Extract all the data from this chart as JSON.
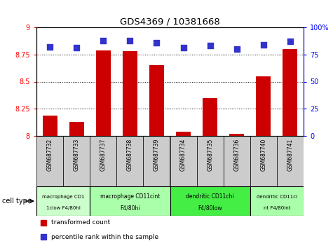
{
  "title": "GDS4369 / 10381668",
  "samples": [
    "GSM687732",
    "GSM687733",
    "GSM687737",
    "GSM687738",
    "GSM687739",
    "GSM687734",
    "GSM687735",
    "GSM687736",
    "GSM687740",
    "GSM687741"
  ],
  "transformed_count": [
    8.19,
    8.13,
    8.79,
    8.78,
    8.65,
    8.04,
    8.35,
    8.02,
    8.55,
    8.8
  ],
  "percentile_rank": [
    82,
    81,
    88,
    88,
    86,
    81,
    83,
    80,
    84,
    87
  ],
  "ylim_left": [
    8.0,
    9.0
  ],
  "ylim_right": [
    0,
    100
  ],
  "yticks_left": [
    8.0,
    8.25,
    8.5,
    8.75,
    9.0
  ],
  "ytick_labels_left": [
    "8",
    "8.25",
    "8.5",
    "8.75",
    "9"
  ],
  "yticks_right": [
    0,
    25,
    50,
    75,
    100
  ],
  "ytick_labels_right": [
    "0",
    "25",
    "50",
    "75",
    "100%"
  ],
  "bar_color": "#cc0000",
  "scatter_color": "#3333cc",
  "grid_dotted": [
    8.25,
    8.5,
    8.75
  ],
  "cell_types": [
    {
      "label1": "macrophage CD1",
      "label2": "1clow F4/80hi",
      "start": 0,
      "end": 2,
      "color": "#ccffcc"
    },
    {
      "label1": "macrophage CD11cint",
      "label2": "F4/80hi",
      "start": 2,
      "end": 5,
      "color": "#aaffaa"
    },
    {
      "label1": "dendritic CD11chi",
      "label2": "F4/80low",
      "start": 5,
      "end": 8,
      "color": "#44ee44"
    },
    {
      "label1": "dendritic CD11ci",
      "label2": "nt F4/80int",
      "start": 8,
      "end": 10,
      "color": "#aaffaa"
    }
  ],
  "sample_bg_color": "#cccccc",
  "bar_width": 0.55,
  "scatter_size": 35,
  "legend_red_label": "transformed count",
  "legend_blue_label": "percentile rank within the sample"
}
